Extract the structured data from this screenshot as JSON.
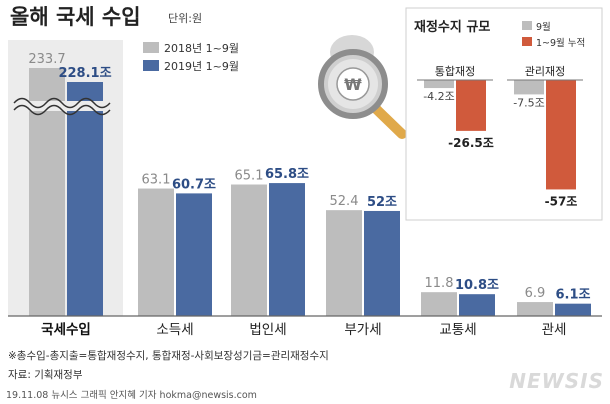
{
  "header": {
    "title": "올해 국세 수입",
    "unit": "단위:원"
  },
  "legend": {
    "items": [
      "2018년 1~9월",
      "2019년 1~9월"
    ],
    "colors": [
      "#bdbdbd",
      "#4a6aa1"
    ]
  },
  "chart_data": [
    {
      "type": "bar",
      "categories": [
        "국세수입",
        "소득세",
        "법인세",
        "부가세",
        "교통세",
        "관세"
      ],
      "value_labels_2018": [
        "233.7",
        "63.1",
        "65.1",
        "52.4",
        "11.8",
        "6.9"
      ],
      "value_labels_2019": [
        "228.1조",
        "60.7조",
        "65.8조",
        "52조",
        "10.8조",
        "6.1조"
      ],
      "series": [
        {
          "name": "2018년 1~9월",
          "values": [
            233.7,
            63.1,
            65.1,
            52.4,
            11.8,
            6.9
          ],
          "color": "#bdbdbd"
        },
        {
          "name": "2019년 1~9월",
          "values": [
            228.1,
            60.7,
            65.8,
            52.0,
            10.8,
            6.1
          ],
          "color": "#4a6aa1"
        }
      ],
      "axis_break": "국세수입",
      "ylabel": "",
      "grid": false
    },
    {
      "type": "bar",
      "title": "재정수지 규모",
      "categories": [
        "통합재정",
        "관리재정"
      ],
      "value_labels_9m": [
        "-4.2조",
        "-7.5조"
      ],
      "value_labels_ytd": [
        "-26.5조",
        "-57조"
      ],
      "series": [
        {
          "name": "9월",
          "values": [
            -4.2,
            -7.5
          ],
          "color": "#bdbdbd"
        },
        {
          "name": "1~9월 누적",
          "values": [
            -26.5,
            -57.0
          ],
          "color": "#d05a3c"
        }
      ]
    }
  ],
  "notes": {
    "footnote": "※총수입-총지출=통합재정수지, 통합재정-사회보장성기금=관리재정수지",
    "source": "자료: 기획재정부",
    "credit": "19.11.08 뉴시스 그래픽 안지혜 기자 hokma@newsis.com",
    "brand": "NEWSIS"
  },
  "icon": {
    "name": "magnifier-won-icon",
    "symbol": "₩"
  }
}
